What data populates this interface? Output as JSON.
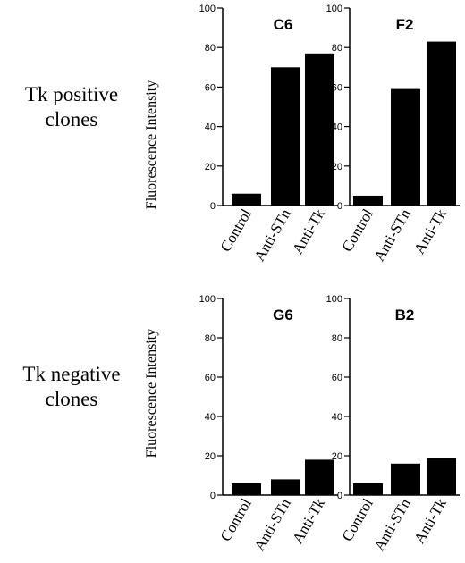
{
  "row_labels": [
    {
      "line1": "Tk positive",
      "line2": "clones"
    },
    {
      "line1": "Tk negative",
      "line2": "clones"
    }
  ],
  "bar_color": "#000000",
  "chart_data": [
    {
      "type": "bar",
      "title": "C6",
      "ylabel": "Fluorescence Intensity",
      "ylim": [
        0,
        100
      ],
      "yticks": [
        0,
        20,
        40,
        60,
        80,
        100
      ],
      "categories": [
        "Control",
        "Anti-STn",
        "Anti-Tk"
      ],
      "values": [
        6,
        70,
        77
      ]
    },
    {
      "type": "bar",
      "title": "F2",
      "ylabel": "",
      "ylim": [
        0,
        100
      ],
      "yticks": [
        0,
        20,
        40,
        60,
        80,
        100
      ],
      "categories": [
        "Control",
        "Anti-STn",
        "Anti-Tk"
      ],
      "values": [
        5,
        59,
        83
      ]
    },
    {
      "type": "bar",
      "title": "G6",
      "ylabel": "Fluorescence Intensity",
      "ylim": [
        0,
        100
      ],
      "yticks": [
        0,
        20,
        40,
        60,
        80,
        100
      ],
      "categories": [
        "Control",
        "Anti-STn",
        "Anti-Tk"
      ],
      "values": [
        6,
        8,
        18
      ]
    },
    {
      "type": "bar",
      "title": "B2",
      "ylabel": "",
      "ylim": [
        0,
        100
      ],
      "yticks": [
        0,
        20,
        40,
        60,
        80,
        100
      ],
      "categories": [
        "Control",
        "Anti-STn",
        "Anti-Tk"
      ],
      "values": [
        6,
        16,
        19
      ]
    }
  ]
}
